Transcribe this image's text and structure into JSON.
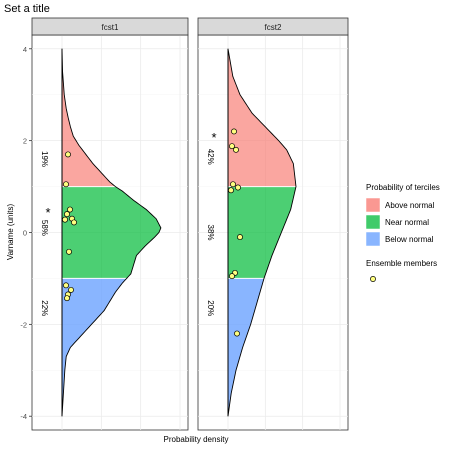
{
  "chart_data": {
    "type": "area",
    "title": "Set a title",
    "xlabel": "Probability density",
    "ylabel": "Varname (units)",
    "ylim": [
      -4.3,
      4.3
    ],
    "yticks": [
      -4,
      -2,
      0,
      2,
      4
    ],
    "grid": true,
    "legend_position": "right",
    "terciles": {
      "lower": -1,
      "upper": 1
    },
    "legend": {
      "terciles_title": "Probability of terciles",
      "categories": [
        {
          "name": "Above normal",
          "color": "#F8766D"
        },
        {
          "name": "Near normal",
          "color": "#00BA38"
        },
        {
          "name": "Below normal",
          "color": "#619CFF"
        }
      ],
      "members_title": "Ensemble members",
      "member_color": "#FFFF80"
    },
    "panels": [
      {
        "name": "fcst1",
        "density": {
          "y": [
            -4.0,
            -3.5,
            -3.0,
            -2.7,
            -2.5,
            -2.3,
            -2.1,
            -1.9,
            -1.7,
            -1.5,
            -1.3,
            -1.1,
            -1.0,
            -0.9,
            -0.7,
            -0.5,
            -0.3,
            -0.1,
            0.0,
            0.1,
            0.3,
            0.5,
            0.7,
            0.9,
            1.0,
            1.1,
            1.3,
            1.5,
            1.7,
            1.9,
            2.1,
            2.3,
            2.5,
            2.7,
            3.0,
            3.5,
            4.0
          ],
          "d": [
            0.0,
            0.005,
            0.01,
            0.015,
            0.03,
            0.06,
            0.09,
            0.12,
            0.15,
            0.17,
            0.19,
            0.215,
            0.23,
            0.245,
            0.255,
            0.265,
            0.295,
            0.33,
            0.345,
            0.352,
            0.335,
            0.3,
            0.255,
            0.215,
            0.19,
            0.17,
            0.14,
            0.11,
            0.085,
            0.06,
            0.04,
            0.03,
            0.022,
            0.015,
            0.008,
            0.002,
            0.0
          ]
        },
        "members": [
          1.7,
          1.05,
          0.5,
          0.4,
          0.3,
          0.28,
          0.22,
          -0.42,
          -1.15,
          -1.25,
          -1.35,
          -1.43
        ],
        "tercile_labels": [
          {
            "text": "19%",
            "y": 1.6
          },
          {
            "text": "58%",
            "y": 0.1
          },
          {
            "text": "22%",
            "y": -1.65
          }
        ],
        "star_y": 0.25
      },
      {
        "name": "fcst2",
        "density": {
          "y": [
            -4.0,
            -3.5,
            -3.0,
            -2.5,
            -2.0,
            -1.5,
            -1.0,
            -0.5,
            0.0,
            0.5,
            1.0,
            1.5,
            1.8,
            2.0,
            2.3,
            2.6,
            3.0,
            3.4,
            3.8,
            4.0
          ],
          "d": [
            0.0,
            0.012,
            0.03,
            0.055,
            0.085,
            0.11,
            0.135,
            0.165,
            0.2,
            0.235,
            0.255,
            0.245,
            0.22,
            0.19,
            0.14,
            0.09,
            0.045,
            0.018,
            0.006,
            0.0
          ]
        },
        "members": [
          2.2,
          1.88,
          1.8,
          1.05,
          0.98,
          0.92,
          -0.1,
          -0.88,
          -0.95,
          -2.2
        ],
        "tercile_labels": [
          {
            "text": "42%",
            "y": 1.65
          },
          {
            "text": "38%",
            "y": 0.0
          },
          {
            "text": "20%",
            "y": -1.65
          }
        ],
        "star_y": 1.88
      }
    ],
    "xlim": [
      0,
      0.42
    ],
    "axis_color": "#333333"
  }
}
